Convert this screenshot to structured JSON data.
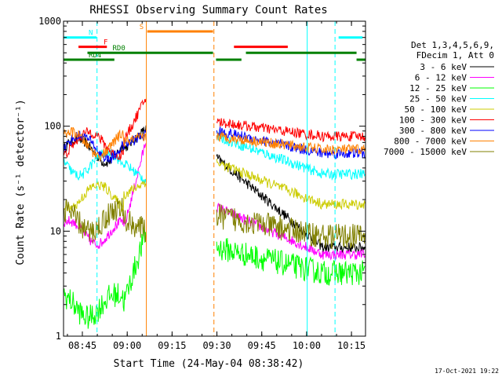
{
  "chart_data": {
    "type": "line",
    "title": "RHESSI Observing Summary Count Rates",
    "xlabel": "Start Time (24-May-04 08:38:42)",
    "ylabel": "Count Rate (s⁻¹ detector⁻¹)",
    "y_scale": "log",
    "ylim": [
      1,
      1000
    ],
    "xlim_minutes": [
      0,
      101
    ],
    "x_ticks": [
      {
        "minute": 6.3,
        "label": "08:45"
      },
      {
        "minute": 21.3,
        "label": "09:00"
      },
      {
        "minute": 36.3,
        "label": "09:15"
      },
      {
        "minute": 51.3,
        "label": "09:30"
      },
      {
        "minute": 66.3,
        "label": "09:45"
      },
      {
        "minute": 81.3,
        "label": "10:00"
      },
      {
        "minute": 96.3,
        "label": "10:15"
      }
    ],
    "y_ticks": [
      {
        "value": 1,
        "label": "1"
      },
      {
        "value": 10,
        "label": "10"
      },
      {
        "value": 100,
        "label": "100"
      },
      {
        "value": 1000,
        "label": "1000"
      }
    ],
    "legend_header": [
      "Det 1,3,4,5,6,9,",
      "FDecim 1, Att 0"
    ],
    "legend_position": "right",
    "timestamp": "17-Oct-2021 19:22",
    "series": [
      {
        "name": "3 - 6 keV",
        "color": "#000000",
        "pre": 60,
        "peak": 95,
        "post_start": 50,
        "post_end": 7
      },
      {
        "name": "6 - 12 keV",
        "color": "#ff00ff",
        "pre": 10,
        "peak": 75,
        "post_start": 17,
        "post_end": 6
      },
      {
        "name": "12 - 25 keV",
        "color": "#00ff00",
        "pre": 2,
        "peak": 10,
        "post_start": 7,
        "post_end": 4
      },
      {
        "name": "25 - 50 keV",
        "color": "#00ffff",
        "pre": 45,
        "peak": 30,
        "post_start": 80,
        "post_end": 35
      },
      {
        "name": "50 - 100 keV",
        "color": "#cccc00",
        "pre": 22,
        "peak": 30,
        "post_start": 45,
        "post_end": 18
      },
      {
        "name": "100 - 300 keV",
        "color": "#ff0000",
        "pre": 70,
        "peak": 190,
        "post_start": 110,
        "post_end": 80
      },
      {
        "name": "300 - 800 keV",
        "color": "#0000ff",
        "pre": 65,
        "peak": 85,
        "post_start": 90,
        "post_end": 55
      },
      {
        "name": "800 - 7000 keV",
        "color": "#ff8000",
        "pre": 70,
        "peak": 80,
        "post_start": 80,
        "post_end": 60
      },
      {
        "name": "7000 - 15000 keV",
        "color": "#808000",
        "pre": 13,
        "peak": 10,
        "post_start": 14,
        "post_end": 9
      }
    ],
    "flags": [
      {
        "label": "N",
        "color": "#00ffff",
        "value": 700,
        "segments": [
          [
            0,
            11
          ],
          [
            92,
            100
          ]
        ]
      },
      {
        "label": "F",
        "color": "#ff0000",
        "value": 570,
        "segments": [
          [
            5,
            14.5
          ],
          [
            57,
            75
          ]
        ]
      },
      {
        "label": "S",
        "color": "#ff8000",
        "value": 800,
        "segments": [
          [
            28,
            50
          ]
        ]
      },
      {
        "label": "RD0",
        "color": "#008000",
        "value": 500,
        "segments": [
          [
            8,
            50
          ],
          [
            61,
            98
          ]
        ]
      },
      {
        "label": "RD4",
        "color": "#008000",
        "value": 430,
        "segments": [
          [
            0,
            17
          ],
          [
            51,
            59.5
          ],
          [
            98,
            101
          ]
        ]
      }
    ],
    "vlines": [
      {
        "minute": 11.2,
        "color": "#00ffff",
        "style": "dashed"
      },
      {
        "minute": 27.7,
        "color": "#ff8000",
        "style": "solid"
      },
      {
        "minute": 50.3,
        "color": "#ff8000",
        "style": "dashed"
      },
      {
        "minute": 81.5,
        "color": "#00ffff",
        "style": "solid"
      },
      {
        "minute": 90.8,
        "color": "#00ffff",
        "style": "dashed"
      }
    ],
    "data_gaps": [
      [
        27.7,
        51.2
      ]
    ]
  }
}
